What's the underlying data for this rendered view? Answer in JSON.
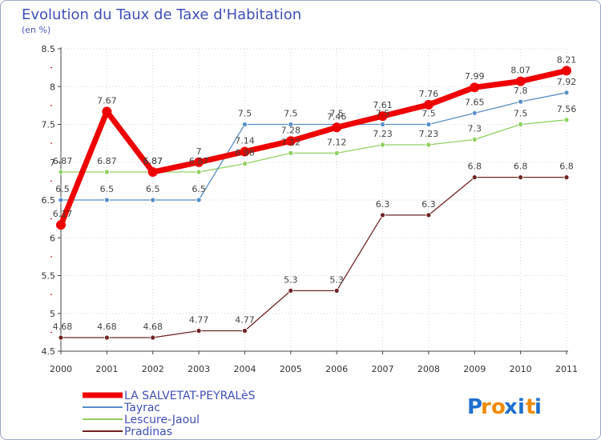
{
  "chart_data": {
    "type": "line",
    "title": "Evolution du Taux de Taxe d'Habitation",
    "subtitle": "(en %)",
    "xlabel": "",
    "ylabel": "",
    "categories": [
      "2000",
      "2001",
      "2002",
      "2003",
      "2004",
      "2005",
      "2006",
      "2007",
      "2008",
      "2009",
      "2010",
      "2011"
    ],
    "ylim": [
      4.5,
      8.5
    ],
    "yticks": [
      "4.5",
      "5",
      "5.5",
      "6",
      "6.5",
      "7",
      "7.5",
      "8",
      "8.5"
    ],
    "series": [
      {
        "name": "LA SALVETAT-PEYRALèS",
        "color": "#ee0000",
        "values": [
          6.17,
          7.67,
          6.87,
          7,
          7.14,
          7.28,
          7.46,
          7.61,
          7.76,
          7.99,
          8.07,
          8.21
        ],
        "labels": [
          "6.17",
          "7.67",
          "6.87",
          "7",
          "7.14",
          "7.28",
          "7.46",
          "7.61",
          "7.76",
          "7.99",
          "8.07",
          "8.21"
        ]
      },
      {
        "name": "Tayrac",
        "color": "#5a8ec8",
        "values": [
          6.5,
          6.5,
          6.5,
          6.5,
          7.5,
          7.5,
          7.5,
          7.5,
          7.5,
          7.65,
          7.8,
          7.92
        ],
        "labels": [
          "6.5",
          "6.5",
          "6.5",
          "6.5",
          "7.5",
          "7.5",
          "7.5",
          "7.5",
          "7.5",
          "7.65",
          "7.8",
          "7.92"
        ]
      },
      {
        "name": "Lescure-Jaoul",
        "color": "#90d060",
        "values": [
          6.87,
          6.87,
          6.87,
          6.87,
          6.98,
          7.12,
          7.12,
          7.23,
          7.23,
          7.3,
          7.5,
          7.56
        ],
        "labels": [
          "6.87",
          "6.87",
          "6.87",
          "6.87",
          "6.98",
          "7.12",
          "7.12",
          "7.23",
          "7.23",
          "7.3",
          "7.5",
          "7.56"
        ]
      },
      {
        "name": "Pradinas",
        "color": "#6e2424",
        "values": [
          4.68,
          4.68,
          4.68,
          4.77,
          4.77,
          5.3,
          5.3,
          6.3,
          6.3,
          6.8,
          6.8,
          6.8
        ],
        "labels": [
          "4.68",
          "4.68",
          "4.68",
          "4.77",
          "4.77",
          "5.3",
          "5.3",
          "6.3",
          "6.3",
          "6.8",
          "6.8",
          "6.8"
        ]
      }
    ],
    "legend_placement": "bottom-left"
  },
  "brand": {
    "text": "Proxiti",
    "letters": [
      "P",
      "r",
      "o",
      "x",
      "i",
      "t",
      "i"
    ],
    "colors": [
      "#1e6fd0",
      "#f08a00",
      "#f08a00",
      "#1e6fd0",
      "#1e6fd0",
      "#f08a00",
      "#1e6fd0"
    ]
  }
}
